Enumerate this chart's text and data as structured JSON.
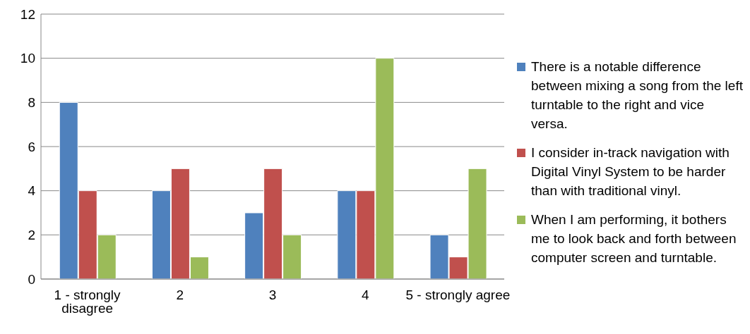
{
  "chart_data": {
    "type": "bar",
    "categories": [
      "1 - strongly disagree",
      "2",
      "3",
      "4",
      "5 - strongly agree"
    ],
    "series": [
      {
        "name": "There is a notable difference between mixing a song from the left turntable to the right and vice versa.",
        "color": "#4f81bd",
        "values": [
          8,
          4,
          3,
          4,
          2
        ]
      },
      {
        "name": "I consider in-track navigation with Digital Vinyl System to be harder than with traditional vinyl.",
        "color": "#c0504d",
        "values": [
          4,
          5,
          5,
          4,
          1
        ]
      },
      {
        "name": "When I am performing, it bothers me to look back and forth between computer screen and turntable.",
        "color": "#9bbb59",
        "values": [
          2,
          1,
          2,
          10,
          5
        ]
      }
    ],
    "ylim": [
      0,
      12
    ],
    "yticks": [
      0,
      2,
      4,
      6,
      8,
      10,
      12
    ],
    "grid": "y",
    "legend": "right"
  }
}
